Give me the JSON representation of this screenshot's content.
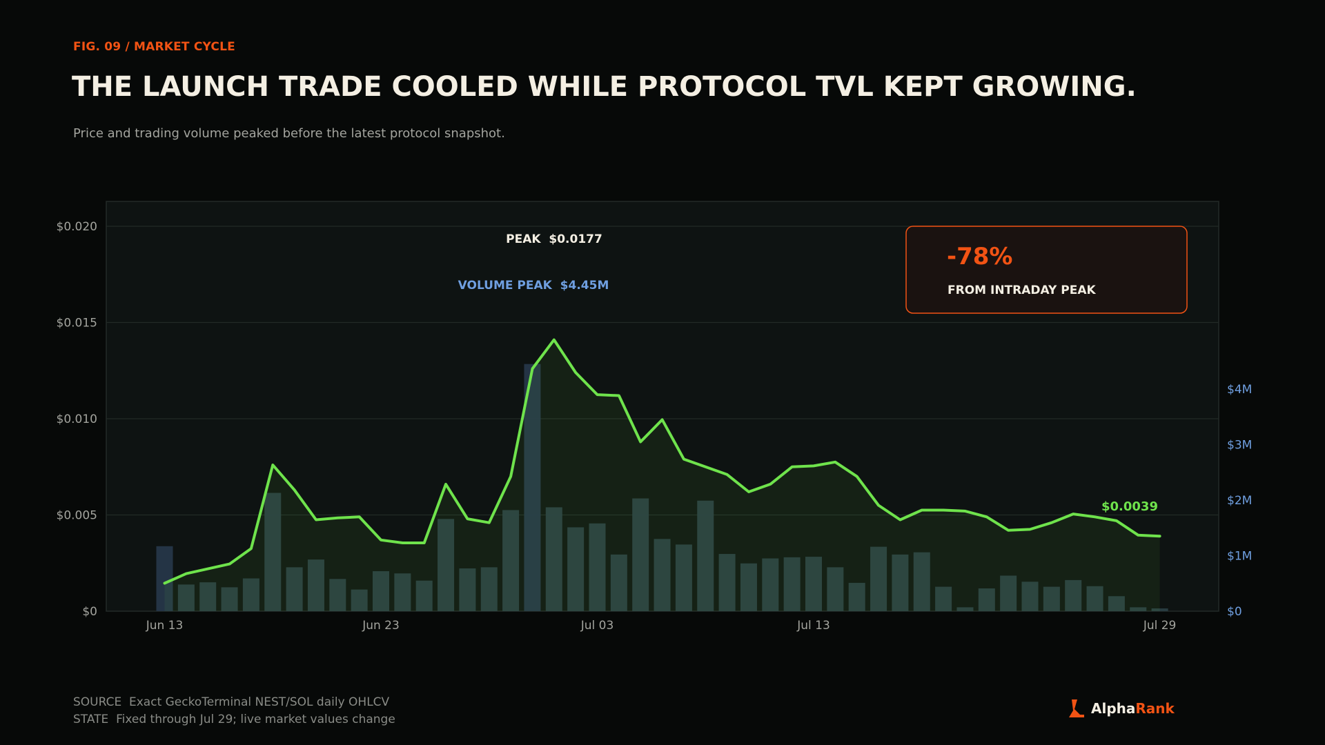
{
  "header": {
    "fig_label": "FIG. 09 / MARKET CYCLE",
    "title": "THE LAUNCH TRADE COOLED WHILE PROTOCOL TVL KEPT GROWING.",
    "subtitle": "Price and trading volume peaked before the latest protocol snapshot."
  },
  "footer": {
    "source": "SOURCE  Exact GeckoTerminal NEST/SOL daily OHLCV",
    "state": "STATE  Fixed through Jul 29; live market values change",
    "brand_alpha": "Alpha",
    "brand_rank": "Rank"
  },
  "colors": {
    "background": "#070908",
    "plot_bg": "#0e1312",
    "price_line": "#6fe34c",
    "volume_bar": "#2a3d43",
    "volume_axis": "#6f9fe0",
    "accent": "#f25314"
  },
  "chart_data": {
    "type": "line",
    "dual_axis": true,
    "x_ticks": [
      "Jun 13",
      "Jun 23",
      "Jul 03",
      "Jul 13",
      "Jul 29"
    ],
    "y_left": {
      "ticks": [
        "$0",
        "$0.005",
        "$0.010",
        "$0.015",
        "$0.020"
      ],
      "tick_values": [
        0,
        0.005,
        0.01,
        0.015,
        0.02
      ],
      "range": [
        0,
        0.02
      ]
    },
    "y_right": {
      "ticks": [
        "$0",
        "$1M",
        "$2M",
        "$3M",
        "$4M"
      ],
      "tick_values": [
        0,
        1,
        2,
        3,
        4
      ],
      "range": [
        0,
        6.93
      ]
    },
    "grid": true,
    "x_start": "Jun 13",
    "x_end": "Jul 29",
    "series": [
      {
        "type": "line",
        "axis": "left",
        "values": [
          0.00145,
          0.00195,
          0.0022,
          0.00245,
          0.00325,
          0.0076,
          0.0063,
          0.00475,
          0.00485,
          0.0049,
          0.0037,
          0.00355,
          0.00355,
          0.0066,
          0.0048,
          0.0046,
          0.007,
          0.0126,
          0.0141,
          0.0124,
          0.01125,
          0.0112,
          0.0088,
          0.00995,
          0.0079,
          0.0075,
          0.0071,
          0.0062,
          0.0066,
          0.0075,
          0.00755,
          0.00775,
          0.007,
          0.0055,
          0.00475,
          0.00525,
          0.00525,
          0.0052,
          0.0049,
          0.0042,
          0.00425,
          0.0046,
          0.00505,
          0.0049,
          0.0047,
          0.00395,
          0.0039
        ]
      },
      {
        "type": "bar",
        "axis": "right",
        "values": [
          1.17,
          0.48,
          0.52,
          0.43,
          0.59,
          2.13,
          0.79,
          0.93,
          0.58,
          0.39,
          0.72,
          0.68,
          0.55,
          1.66,
          0.77,
          0.79,
          1.82,
          4.45,
          1.87,
          1.51,
          1.58,
          1.02,
          2.03,
          1.3,
          1.2,
          1.99,
          1.03,
          0.86,
          0.95,
          0.97,
          0.98,
          0.79,
          0.51,
          1.16,
          1.02,
          1.06,
          0.44,
          0.07,
          0.41,
          0.64,
          0.53,
          0.44,
          0.56,
          0.45,
          0.27,
          0.07,
          0.05
        ]
      }
    ],
    "annotations": {
      "price_peak": "PEAK  $0.0177",
      "volume_peak": "VOLUME PEAK  $4.45M",
      "last_value": "$0.0039",
      "callout_value": "-78%",
      "callout_label": "FROM INTRADAY PEAK"
    }
  }
}
